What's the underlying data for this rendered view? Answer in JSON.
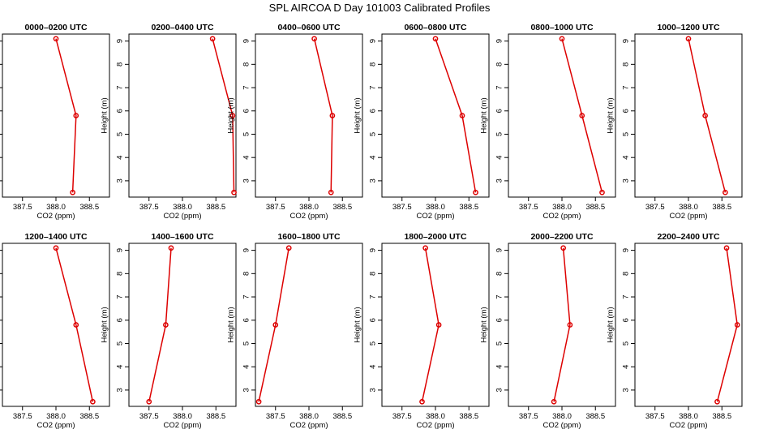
{
  "chart_data": {
    "type": "line",
    "title": "SPL AIRCOA D  Day 101003  Calibrated Profiles",
    "xlabel": "CO2 (ppm)",
    "ylabel": "Height (m)",
    "xlim": [
      387.2,
      388.8
    ],
    "ylim": [
      2.3,
      9.3
    ],
    "xticks": [
      "387.5",
      "388.0",
      "388.5"
    ],
    "xtick_values": [
      387.5,
      388.0,
      388.5
    ],
    "yticks": [
      "3",
      "4",
      "5",
      "6",
      "7",
      "8",
      "9"
    ],
    "ytick_values": [
      3,
      4,
      5,
      6,
      7,
      8,
      9
    ],
    "line_color": "#dd0000",
    "heights": [
      9.1,
      5.8,
      2.5
    ],
    "panels": [
      {
        "title": "0000–0200 UTC",
        "co2": [
          388.0,
          388.3,
          388.25
        ]
      },
      {
        "title": "0200–0400 UTC",
        "co2": [
          388.45,
          388.75,
          388.77
        ]
      },
      {
        "title": "0400–0600 UTC",
        "co2": [
          388.08,
          388.35,
          388.33
        ]
      },
      {
        "title": "0600–0800 UTC",
        "co2": [
          388.0,
          388.4,
          388.6
        ]
      },
      {
        "title": "0800–1000 UTC",
        "co2": [
          388.0,
          388.3,
          388.6
        ]
      },
      {
        "title": "1000–1200 UTC",
        "co2": [
          388.0,
          388.25,
          388.55
        ]
      },
      {
        "title": "1200–1400 UTC",
        "co2": [
          388.0,
          388.3,
          388.55
        ]
      },
      {
        "title": "1400–1600 UTC",
        "co2": [
          387.83,
          387.75,
          387.5
        ]
      },
      {
        "title": "1600–1800 UTC",
        "co2": [
          387.7,
          387.5,
          387.25
        ]
      },
      {
        "title": "1800–2000 UTC",
        "co2": [
          387.85,
          388.05,
          387.8
        ]
      },
      {
        "title": "2000–2200 UTC",
        "co2": [
          388.02,
          388.12,
          387.88
        ]
      },
      {
        "title": "2200–2400 UTC",
        "co2": [
          388.57,
          388.73,
          388.43
        ]
      }
    ]
  }
}
